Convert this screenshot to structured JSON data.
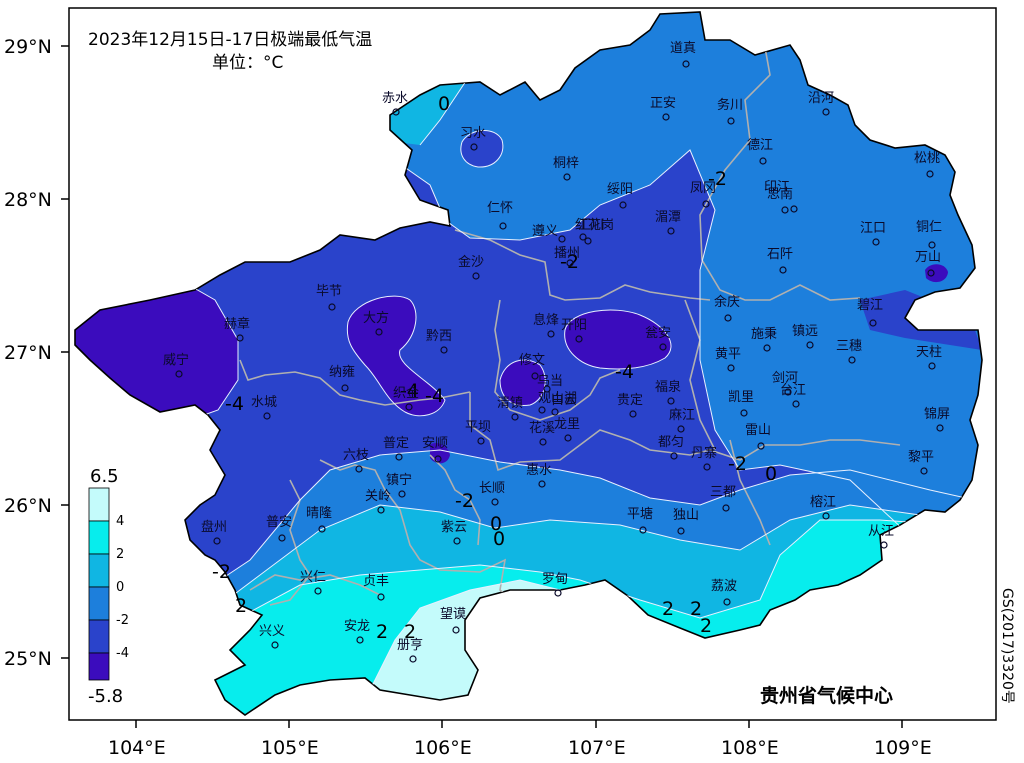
{
  "title": "2023年12月15日-17日极端最低气温",
  "unit": "单位：°C",
  "axes": {
    "x_ticks": [
      "104°E",
      "105°E",
      "106°E",
      "107°E",
      "108°E",
      "109°E"
    ],
    "y_ticks": [
      "29°N",
      "28°N",
      "27°N",
      "26°N",
      "25°N"
    ]
  },
  "legend": {
    "max_label": "6.5",
    "min_label": "-5.8",
    "levels": [
      "4",
      "2",
      "0",
      "-2",
      "-4"
    ],
    "colors": {
      "above_4": "#c4fbfb",
      "2_to_4": "#07eded",
      "0_to_2": "#10b6e3",
      "neg2_to_0": "#1d7fdc",
      "neg4_to_neg2": "#2a43cb",
      "below_neg4": "#3b0cbd"
    }
  },
  "contour_labels": [
    "0",
    "-2",
    "-2",
    "-4",
    "-4",
    "-2",
    "0",
    "-2",
    "-4",
    "-2",
    "0",
    "2",
    "2",
    "2",
    "2",
    "2",
    "2",
    "0",
    "-4"
  ],
  "cities": [
    "道真",
    "赤水",
    "正安",
    "务川",
    "沿河",
    "习水",
    "桐梓",
    "德江",
    "松桃",
    "绥阳",
    "凤冈",
    "印江",
    "思南",
    "仁怀",
    "遵义",
    "汇川",
    "红花岗",
    "播州",
    "湄潭",
    "江口",
    "铜仁",
    "金沙",
    "石阡",
    "万山",
    "毕节",
    "息烽",
    "开阳",
    "余庆",
    "碧江",
    "赫章",
    "大方",
    "黔西",
    "瓮安",
    "施秉",
    "镇远",
    "三穗",
    "天柱",
    "威宁",
    "纳雍",
    "修文",
    "乌当",
    "黄平",
    "剑河",
    "织金",
    "清镇",
    "观山湖",
    "白云",
    "贵定",
    "福泉",
    "台江",
    "锦屏",
    "水城",
    "平坝",
    "花溪",
    "龙里",
    "麻江",
    "凯里",
    "雷山",
    "六枝",
    "普定",
    "安顺",
    "都匀",
    "丹寨",
    "黎平",
    "镇宁",
    "惠水",
    "关岭",
    "长顺",
    "三都",
    "盘州",
    "普安",
    "晴隆",
    "紫云",
    "平塘",
    "独山",
    "榕江",
    "从江",
    "兴仁",
    "贞丰",
    "罗甸",
    "荔波",
    "兴义",
    "安龙",
    "望谟",
    "册亨"
  ],
  "agency": "贵州省气候中心",
  "map_code": "GS(2017)3320号"
}
